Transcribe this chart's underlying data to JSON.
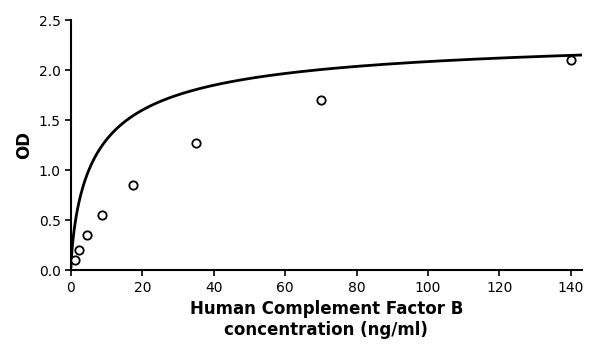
{
  "x_data": [
    1.09,
    2.19,
    4.38,
    8.75,
    17.5,
    35,
    70,
    140
  ],
  "y_data": [
    0.1,
    0.2,
    0.35,
    0.55,
    0.85,
    1.27,
    1.7,
    2.1
  ],
  "xlabel_line1": "Human Complement Factor B",
  "xlabel_line2": "concentration (ng/ml)",
  "ylabel": "OD",
  "xlim": [
    0,
    143
  ],
  "ylim": [
    0,
    2.5
  ],
  "xticks": [
    0,
    20,
    40,
    60,
    80,
    100,
    120,
    140
  ],
  "yticks": [
    0,
    0.5,
    1.0,
    1.5,
    2.0,
    2.5
  ],
  "marker": "o",
  "marker_size": 6,
  "marker_facecolor": "white",
  "marker_edgecolor": "black",
  "line_color": "black",
  "line_width": 2.0,
  "background_color": "#ffffff",
  "xlabel_fontsize": 12,
  "ylabel_fontsize": 12,
  "tick_fontsize": 10,
  "figsize": [
    6.0,
    3.54
  ],
  "dpi": 100
}
